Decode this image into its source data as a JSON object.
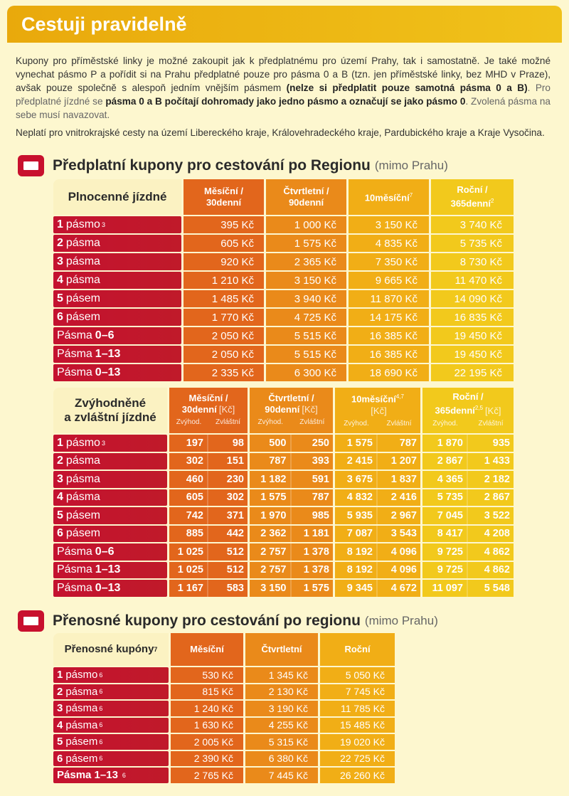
{
  "title": "Cestuji pravidelně",
  "intro": {
    "p1_a": "Kupony pro příměstské linky je možné zakoupit jak k předplatnému pro území Prahy, tak i samostatně. Je také možné vynechat pásmo P a pořídit si na Prahu předplatné pouze pro pásma 0 a B (tzn. jen příměstské linky, bez MHD v Praze), avšak pouze společně s alespoň jedním vnějším pásmem ",
    "p1_b": "(nelze si předplatit pouze samotná pásma 0 a B)",
    "p1_c": ". Pro předplatné jízdné se ",
    "p1_d": "pásma 0 a B počítají dohromady jako jedno pásmo a označují se jako pásmo 0",
    "p1_e": ". Zvolená pásma na sebe musí navazovat.",
    "p2": "Neplatí pro vnitrokrajské cesty na území Libereckého kraje, Královehradeckého kraje, Pardubického kraje a Kraje Vysočina."
  },
  "section1": {
    "title": "Předplatní kupony pro cestování po Regionu",
    "subtitle": "(mimo Prahu)"
  },
  "section2": {
    "title": "Přenosné kupony pro cestování po regionu",
    "subtitle": "(mimo Prahu)"
  },
  "table1": {
    "label": "Plnocenné jízdné",
    "headers": [
      {
        "l1": "Měsíční /",
        "l2": "30denní",
        "sup": ""
      },
      {
        "l1": "Čtvrtletní /",
        "l2": "90denní",
        "sup": ""
      },
      {
        "l1": "10měsíční",
        "l2": "",
        "sup": "7"
      },
      {
        "l1": "Roční /",
        "l2": "365denní",
        "sup": "2"
      }
    ],
    "rows": [
      {
        "b": "1",
        "t": "pásmo",
        "sup": "3",
        "order": "bt",
        "v": [
          "395 Kč",
          "1 000 Kč",
          "3 150 Kč",
          "3 740 Kč"
        ]
      },
      {
        "b": "2",
        "t": "pásma",
        "sup": "",
        "order": "bt",
        "v": [
          "605 Kč",
          "1 575 Kč",
          "4 835 Kč",
          "5 735 Kč"
        ]
      },
      {
        "b": "3",
        "t": "pásma",
        "sup": "",
        "order": "bt",
        "v": [
          "920 Kč",
          "2 365 Kč",
          "7 350 Kč",
          "8 730 Kč"
        ]
      },
      {
        "b": "4",
        "t": "pásma",
        "sup": "",
        "order": "bt",
        "v": [
          "1 210 Kč",
          "3 150 Kč",
          "9 665 Kč",
          "11 470 Kč"
        ]
      },
      {
        "b": "5",
        "t": "pásem",
        "sup": "",
        "order": "bt",
        "v": [
          "1 485 Kč",
          "3 940 Kč",
          "11 870 Kč",
          "14 090 Kč"
        ]
      },
      {
        "b": "6",
        "t": "pásem",
        "sup": "",
        "order": "bt",
        "v": [
          "1 770 Kč",
          "4 725 Kč",
          "14 175 Kč",
          "16 835 Kč"
        ]
      },
      {
        "b": "0–6",
        "t": "Pásma",
        "sup": "",
        "order": "tb",
        "v": [
          "2 050 Kč",
          "5 515 Kč",
          "16 385 Kč",
          "19 450 Kč"
        ]
      },
      {
        "b": "1–13",
        "t": "Pásma",
        "sup": "",
        "order": "tb",
        "v": [
          "2 050 Kč",
          "5 515 Kč",
          "16 385 Kč",
          "19 450 Kč"
        ]
      },
      {
        "b": "0–13",
        "t": "Pásma",
        "sup": "",
        "order": "tb",
        "v": [
          "2 335 Kč",
          "6 300 Kč",
          "18 690 Kč",
          "22 195 Kč"
        ]
      }
    ]
  },
  "table2": {
    "label_l1": "Zvýhodněné",
    "label_l2": "a zvláštní jízdné",
    "sub": [
      "Zvýhod.",
      "Zvláštní"
    ],
    "headers": [
      {
        "l1": "Měsíční /",
        "l2": "30denní",
        "sup": "",
        "unit": "[Kč]"
      },
      {
        "l1": "Čtvrtletní /",
        "l2": "90denní",
        "sup": "",
        "unit": "[Kč]"
      },
      {
        "l1": "10měsíční",
        "l2": "",
        "sup": "4,7",
        "unit": "[Kč]"
      },
      {
        "l1": "Roční /",
        "l2": "365denní",
        "sup": "2,5",
        "unit": "[Kč]"
      }
    ],
    "rows": [
      {
        "b": "1",
        "t": "pásmo",
        "sup": "3",
        "order": "bt",
        "v": [
          "197",
          "98",
          "500",
          "250",
          "1 575",
          "787",
          "1 870",
          "935"
        ]
      },
      {
        "b": "2",
        "t": "pásma",
        "sup": "",
        "order": "bt",
        "v": [
          "302",
          "151",
          "787",
          "393",
          "2 415",
          "1 207",
          "2 867",
          "1 433"
        ]
      },
      {
        "b": "3",
        "t": "pásma",
        "sup": "",
        "order": "bt",
        "v": [
          "460",
          "230",
          "1 182",
          "591",
          "3 675",
          "1 837",
          "4 365",
          "2 182"
        ]
      },
      {
        "b": "4",
        "t": "pásma",
        "sup": "",
        "order": "bt",
        "v": [
          "605",
          "302",
          "1 575",
          "787",
          "4 832",
          "2 416",
          "5 735",
          "2 867"
        ]
      },
      {
        "b": "5",
        "t": "pásem",
        "sup": "",
        "order": "bt",
        "v": [
          "742",
          "371",
          "1 970",
          "985",
          "5 935",
          "2 967",
          "7 045",
          "3 522"
        ]
      },
      {
        "b": "6",
        "t": "pásem",
        "sup": "",
        "order": "bt",
        "v": [
          "885",
          "442",
          "2 362",
          "1 181",
          "7 087",
          "3 543",
          "8 417",
          "4 208"
        ]
      },
      {
        "b": "0–6",
        "t": "Pásma",
        "sup": "",
        "order": "tb",
        "v": [
          "1 025",
          "512",
          "2 757",
          "1 378",
          "8 192",
          "4 096",
          "9 725",
          "4 862"
        ]
      },
      {
        "b": "1–13",
        "t": "Pásma",
        "sup": "",
        "order": "tb",
        "v": [
          "1 025",
          "512",
          "2 757",
          "1 378",
          "8 192",
          "4 096",
          "9 725",
          "4 862"
        ]
      },
      {
        "b": "0–13",
        "t": "Pásma",
        "sup": "",
        "order": "tb",
        "v": [
          "1 167",
          "583",
          "3 150",
          "1 575",
          "9 345",
          "4 672",
          "11 097",
          "5 548"
        ]
      }
    ]
  },
  "table3": {
    "label": "Přenosné kupóny",
    "label_sup": "7",
    "headers": [
      {
        "l1": "Měsíční",
        "l2": "",
        "sup": ""
      },
      {
        "l1": "Čtvrtletní",
        "l2": "",
        "sup": ""
      },
      {
        "l1": "Roční",
        "l2": "",
        "sup": ""
      }
    ],
    "rows": [
      {
        "b": "1",
        "t": "pásmo",
        "sup": "6",
        "order": "bt",
        "v": [
          "530 Kč",
          "1 345 Kč",
          "5 050 Kč"
        ]
      },
      {
        "b": "2",
        "t": "pásma",
        "sup": "6",
        "order": "bt",
        "v": [
          "815 Kč",
          "2 130 Kč",
          "7 745 Kč"
        ]
      },
      {
        "b": "3",
        "t": "pásma",
        "sup": "6",
        "order": "bt",
        "v": [
          "1 240 Kč",
          "3 190 Kč",
          "11 785 Kč"
        ]
      },
      {
        "b": "4",
        "t": "pásma",
        "sup": "6",
        "order": "bt",
        "v": [
          "1 630 Kč",
          "4 255 Kč",
          "15 485 Kč"
        ]
      },
      {
        "b": "5",
        "t": "pásem",
        "sup": "6",
        "order": "bt",
        "v": [
          "2 005 Kč",
          "5 315 Kč",
          "19 020 Kč"
        ]
      },
      {
        "b": "6",
        "t": "pásem",
        "sup": "6",
        "order": "bt",
        "v": [
          "2 390 Kč",
          "6 380 Kč",
          "22 725 Kč"
        ]
      },
      {
        "b": "Pásma 1–13",
        "t": "",
        "sup": "6",
        "order": "bt",
        "v": [
          "2 765 Kč",
          "7 445 Kč",
          "26 260 Kč"
        ]
      }
    ]
  }
}
